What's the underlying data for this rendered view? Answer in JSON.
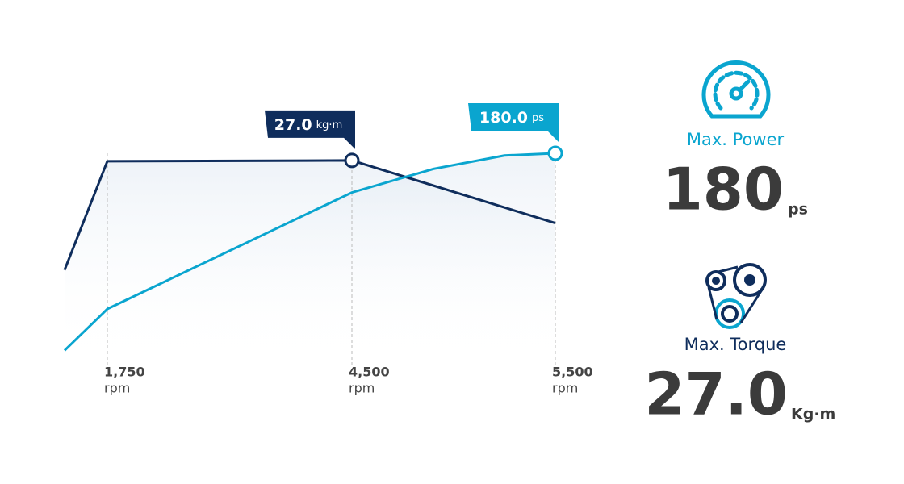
{
  "chart_data": {
    "type": "line",
    "xticks": [
      {
        "value": 1750,
        "label": "1,750"
      },
      {
        "value": 4500,
        "label": "4,500"
      },
      {
        "value": 5500,
        "label": "5,500"
      }
    ],
    "xlabel": "rpm",
    "xlim": [
      1270,
      5500
    ],
    "ylim": [
      0,
      180
    ],
    "y2lim": [
      0,
      28
    ],
    "series": [
      {
        "name": "Torque",
        "color": "#0f2d5c",
        "axis": "y2",
        "x": [
          1270,
          1750,
          4500,
          5500
        ],
        "values": [
          11.8,
          26.9,
          27,
          18.3
        ],
        "peak_index": 2,
        "peak_label": "27.0",
        "peak_unit": "kg·m"
      },
      {
        "name": "Power",
        "color": "#0aa5cf",
        "x": [
          1270,
          1750,
          4500,
          4900,
          5250,
          5500
        ],
        "values": [
          4,
          41,
          145,
          166,
          178,
          180
        ],
        "peak_index": 5,
        "peak_label": "180.0",
        "peak_unit": "ps"
      }
    ]
  },
  "stats": {
    "power": {
      "title": "Max. Power",
      "value": "180",
      "unit": "ps"
    },
    "torque": {
      "title": "Max. Torque",
      "value": "27.0",
      "unit": "Kg·m"
    }
  }
}
